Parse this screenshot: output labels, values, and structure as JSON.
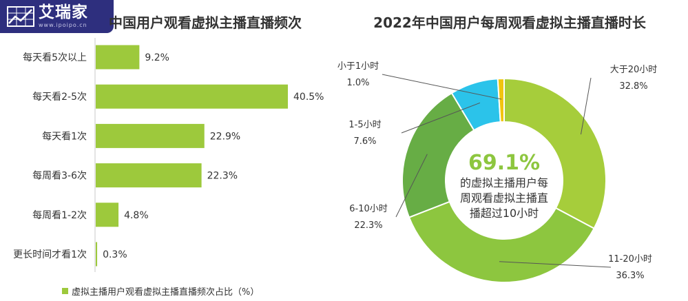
{
  "logo": {
    "text": "艾瑞家",
    "url": "www.ipoipo.cn"
  },
  "left_chart": {
    "title": "中国用户观看虚拟主播直播频次",
    "legend": "虚拟主播用户观看虚拟主播直播频次占比（%）"
  },
  "right_chart": {
    "title": "2022年中国用户每周观看虚拟主播直播时长",
    "center_value": "69.1%",
    "center_text": [
      "的虚拟主播用户每",
      "周观看虚拟主播直",
      "播超过10小时"
    ]
  },
  "colors": {
    "bar": "#9dc93c",
    "logo_bg": "#2e2f7e"
  },
  "chart_data": [
    {
      "type": "bar",
      "orientation": "horizontal",
      "title": "中国用户观看虚拟主播直播频次",
      "categories": [
        "每天看5次以上",
        "每天看2-5次",
        "每天看1次",
        "每周看3-6次",
        "每周看1-2次",
        "更长时间才看1次"
      ],
      "series": [
        {
          "name": "虚拟主播用户观看虚拟主播直播频次占比（%）",
          "values": [
            9.2,
            40.5,
            22.9,
            22.3,
            4.8,
            0.3
          ]
        }
      ],
      "value_labels": [
        "9.2%",
        "40.5%",
        "22.9%",
        "22.3%",
        "4.8%",
        "0.3%"
      ],
      "xlim": [
        0,
        45
      ],
      "grid": false,
      "legend_position": "bottom"
    },
    {
      "type": "pie",
      "donut": true,
      "title": "2022年中国用户每周观看虚拟主播直播时长",
      "slices": [
        {
          "label": "大于20小时",
          "value": 32.8,
          "value_label": "32.8%",
          "color": "#a6cd3b"
        },
        {
          "label": "11-20小时",
          "value": 36.3,
          "value_label": "36.3%",
          "color": "#8dc63f"
        },
        {
          "label": "6-10小时",
          "value": 22.3,
          "value_label": "22.3%",
          "color": "#67ad45"
        },
        {
          "label": "1-5小时",
          "value": 7.6,
          "value_label": "7.6%",
          "color": "#2bc3ea"
        },
        {
          "label": "小于1小时",
          "value": 1.0,
          "value_label": "1.0%",
          "color": "#f1c40f"
        }
      ]
    }
  ]
}
